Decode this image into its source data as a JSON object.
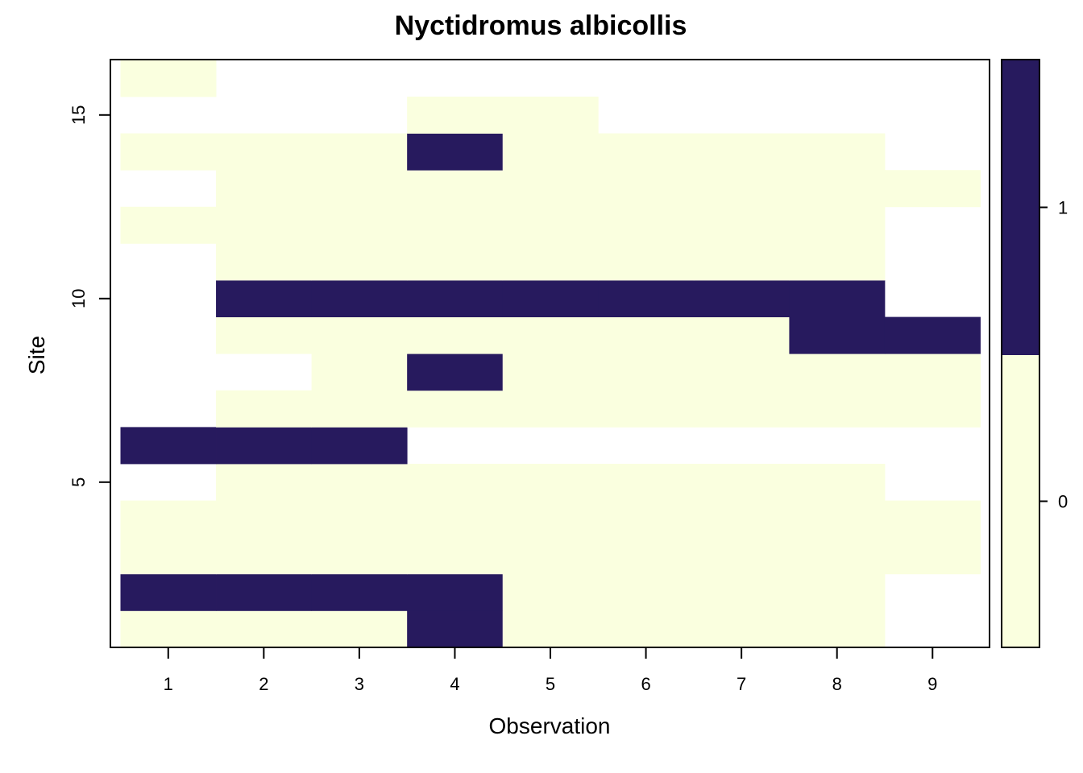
{
  "chart_data": {
    "type": "heatmap",
    "title": "Nyctidromus albicollis",
    "xlabel": "Observation",
    "ylabel": "Site",
    "xlim": [
      0.5,
      9.5
    ],
    "ylim": [
      0.5,
      16.5
    ],
    "x_ticks": [
      1,
      2,
      3,
      4,
      5,
      6,
      7,
      8,
      9
    ],
    "y_ticks": [
      5,
      10,
      15
    ],
    "legend": {
      "position": "right",
      "levels": [
        0,
        1
      ],
      "tick_labels": [
        "0",
        "1"
      ]
    },
    "colors": {
      "0": "#FAFFDF",
      "1": "#271A5E",
      "na": "#FFFFFF"
    },
    "sites": [
      1,
      2,
      3,
      4,
      5,
      6,
      7,
      8,
      9,
      10,
      11,
      12,
      13,
      14,
      15,
      16
    ],
    "observations": [
      1,
      2,
      3,
      4,
      5,
      6,
      7,
      8,
      9
    ],
    "values": [
      [
        0,
        0,
        0,
        1,
        0,
        0,
        0,
        0,
        null
      ],
      [
        1,
        1,
        1,
        1,
        0,
        0,
        0,
        0,
        null
      ],
      [
        0,
        0,
        0,
        0,
        0,
        0,
        0,
        0,
        0
      ],
      [
        0,
        0,
        0,
        0,
        0,
        0,
        0,
        0,
        0
      ],
      [
        null,
        0,
        0,
        0,
        0,
        0,
        0,
        0,
        null
      ],
      [
        1,
        1,
        1,
        null,
        null,
        null,
        null,
        null,
        null
      ],
      [
        null,
        0,
        0,
        0,
        0,
        0,
        0,
        0,
        0
      ],
      [
        null,
        null,
        0,
        1,
        0,
        0,
        0,
        0,
        0
      ],
      [
        null,
        0,
        0,
        0,
        0,
        0,
        0,
        1,
        1
      ],
      [
        null,
        1,
        1,
        1,
        1,
        1,
        1,
        1,
        null
      ],
      [
        null,
        0,
        0,
        0,
        0,
        0,
        0,
        0,
        null
      ],
      [
        0,
        0,
        0,
        0,
        0,
        0,
        0,
        0,
        null
      ],
      [
        null,
        0,
        0,
        0,
        0,
        0,
        0,
        0,
        0
      ],
      [
        0,
        0,
        0,
        1,
        0,
        0,
        0,
        0,
        null
      ],
      [
        null,
        null,
        null,
        0,
        0,
        null,
        null,
        null,
        null
      ],
      [
        0,
        null,
        null,
        null,
        null,
        null,
        null,
        null,
        null
      ]
    ]
  }
}
